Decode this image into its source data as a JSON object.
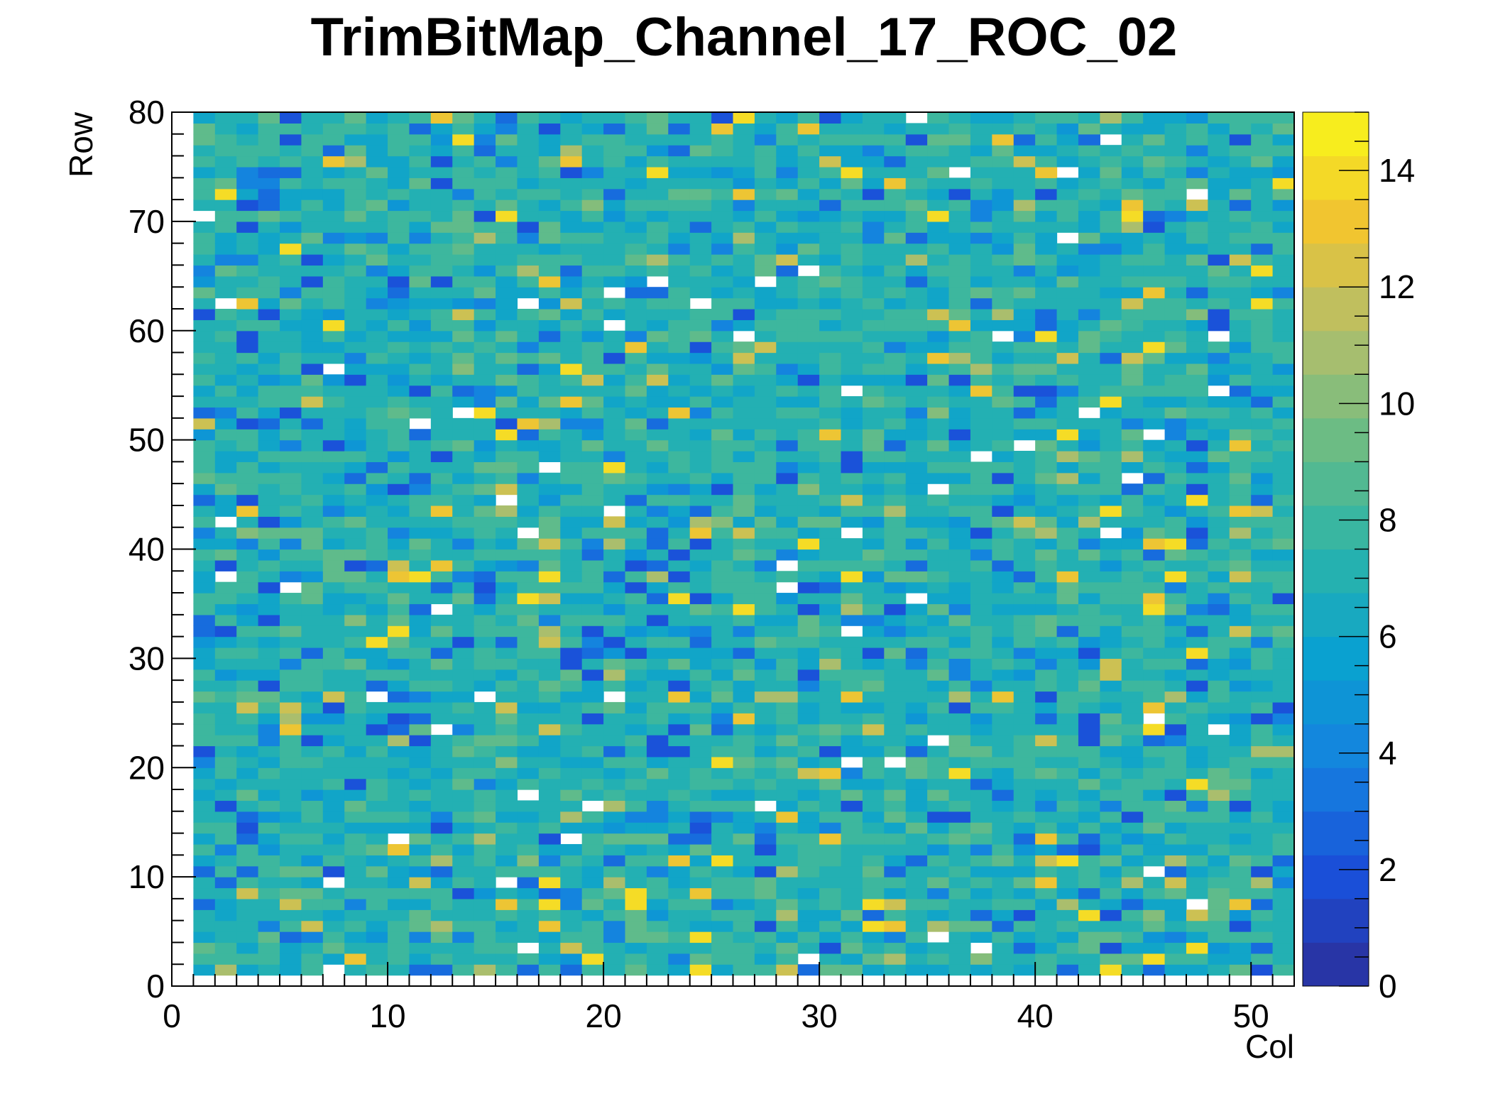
{
  "chart_data": {
    "type": "heatmap",
    "title": "TrimBitMap_Channel_17_ROC_02",
    "xlabel": "Col",
    "ylabel": "Row",
    "xlim": [
      0,
      52
    ],
    "ylim": [
      0,
      80
    ],
    "xticks": [
      "0",
      "10",
      "20",
      "30",
      "40",
      "50"
    ],
    "yticks": [
      "0",
      "10",
      "20",
      "30",
      "40",
      "50",
      "60",
      "70",
      "80"
    ],
    "zlim": [
      0,
      15
    ],
    "zticks": [
      "0",
      "2",
      "4",
      "6",
      "8",
      "10",
      "12",
      "14"
    ],
    "colormap": "parula-like (dark blue → cyan → green → yellow)",
    "grid": false,
    "typical_value": 7,
    "value_range_observed": [
      0,
      14
    ],
    "notes_visible": "Values mostly 6-8 (teal/green), scattered blue (2-4), yellow (12-14) and white (0/empty) cells; white patches mark near-zero entries"
  },
  "colors": {
    "stops": [
      "#2c2f9a",
      "#1a4fd8",
      "#1580e0",
      "#0aa1d0",
      "#2cb5a8",
      "#6cbc84",
      "#b4be6a",
      "#f1c530",
      "#f9f71a"
    ]
  }
}
